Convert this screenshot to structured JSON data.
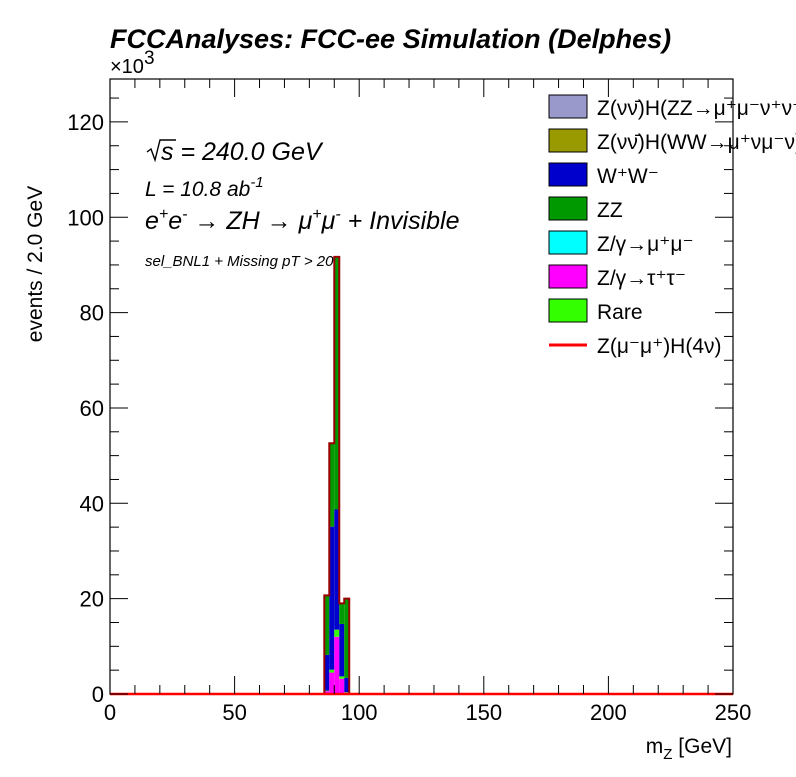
{
  "chart_data": {
    "type": "bar",
    "stacked": true,
    "title": "FCCAnalyses: FCC-ee Simulation (Delphes)",
    "xlabel": "m_{Z} [GeV]",
    "ylabel": "events / 2.0 GeV",
    "y_exponent_label": "×10",
    "y_exponent_power": "3",
    "xlim": [
      0,
      250
    ],
    "ylim": [
      0,
      129
    ],
    "x_ticks": [
      "0",
      "50",
      "100",
      "150",
      "200",
      "250"
    ],
    "y_ticks": [
      "0",
      "20",
      "40",
      "60",
      "80",
      "100",
      "120"
    ],
    "bin_width": 2.0,
    "bin_edges": [
      86,
      88,
      90,
      92,
      94,
      96
    ],
    "annotations": {
      "sqrt_s": "√s = 240.0 GeV",
      "lumi": "L = 10.8 ab⁻¹",
      "process": "e⁺e⁻ → ZH → μ⁺μ⁻ + Invisible",
      "selection": "sel_BNL1 + Missing pT > 20"
    },
    "series": [
      {
        "name": "Z/γ→τ⁺τ⁻",
        "color": "#ff00ff",
        "values": [
          0.6,
          4.5,
          12.0,
          3.2,
          0.3
        ]
      },
      {
        "name": "Rare",
        "color": "#33ff00",
        "values": [
          0.1,
          0.6,
          1.5,
          0.5,
          0.1
        ]
      },
      {
        "name": "W⁺W⁻",
        "color": "#0000cc",
        "values": [
          7.5,
          30.0,
          25.2,
          11.0,
          3.0
        ]
      },
      {
        "name": "ZZ",
        "color": "#009900",
        "values": [
          12.5,
          17.5,
          53.0,
          4.3,
          16.6
        ]
      },
      {
        "name": "Z/γ→μ⁺μ⁻",
        "color": "#00ffff",
        "values": [
          0.0,
          0.0,
          0.0,
          0.0,
          0.0
        ]
      },
      {
        "name": "Z(νν̄)H(ZZ→μ⁺μ⁻ν⁺ν⁻)",
        "color": "#9999cc",
        "values": [
          0.0,
          0.0,
          0.0,
          0.0,
          0.0
        ]
      },
      {
        "name": "Z(νν̄)H(WW→μ⁺νμ⁻ν)",
        "color": "#999900",
        "values": [
          0.0,
          0.0,
          0.0,
          0.0,
          0.0
        ]
      }
    ],
    "signal": {
      "name": "Z(μ⁻μ⁺)H(4ν)",
      "color": "#ff0000",
      "values": [
        0.0,
        0.0,
        0.0,
        0.0,
        0.0
      ]
    },
    "legend": {
      "placement": "top-right",
      "entries": [
        {
          "label": "Z(νν̄)H(ZZ→μ⁺μ⁻ν⁺ν⁻)",
          "color": "#9999cc",
          "kind": "box"
        },
        {
          "label": "Z(νν̄)H(WW→μ⁺νμ⁻ν)",
          "color": "#999900",
          "kind": "box"
        },
        {
          "label": "W⁺W⁻",
          "color": "#0000cc",
          "kind": "box"
        },
        {
          "label": "ZZ",
          "color": "#009900",
          "kind": "box"
        },
        {
          "label": "Z/γ→μ⁺μ⁻",
          "color": "#00ffff",
          "kind": "box"
        },
        {
          "label": "Z/γ→τ⁺τ⁻",
          "color": "#ff00ff",
          "kind": "box"
        },
        {
          "label": "Rare",
          "color": "#33ff00",
          "kind": "box"
        },
        {
          "label": "Z(μ⁻μ⁺)H(4ν)",
          "color": "#ff0000",
          "kind": "line"
        }
      ]
    },
    "grid": false,
    "outline_color": "#990000"
  }
}
